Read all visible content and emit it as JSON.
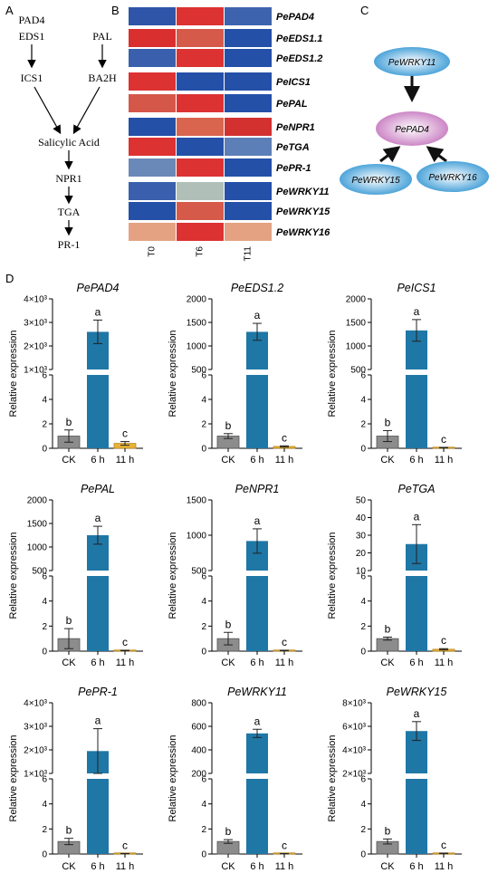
{
  "panels": {
    "A": "A",
    "B": "B",
    "C": "C",
    "D": "D"
  },
  "pathway": {
    "pad4": "PAD4",
    "eds1": "EDS1",
    "pal": "PAL",
    "ics1": "ICS1",
    "ba2h": "BA2H",
    "sa": "Salicylic Acid",
    "npr1": "NPR1",
    "tga": "TGA",
    "pr1": "PR-1"
  },
  "heatmap": {
    "columns": [
      "T0",
      "T6",
      "T11"
    ],
    "rows": [
      {
        "gene": "PePAD4",
        "colors": [
          "#2e55a8",
          "#dc3232",
          "#3e63ae"
        ]
      },
      {
        "gene": "PeEDS1.1",
        "colors": [
          "#d9302f",
          "#d65a4a",
          "#2450a8"
        ]
      },
      {
        "gene": "PeEDS1.2",
        "colors": [
          "#3a60ad",
          "#dc3232",
          "#2450a8"
        ]
      },
      {
        "gene": "PeICS1",
        "colors": [
          "#dc3232",
          "#2450a8",
          "#2450a8"
        ]
      },
      {
        "gene": "PePAL",
        "colors": [
          "#d5574a",
          "#dc3232",
          "#2450a8"
        ]
      },
      {
        "gene": "PeNPR1",
        "colors": [
          "#2450a8",
          "#d9654f",
          "#d33030"
        ]
      },
      {
        "gene": "PeTGA",
        "colors": [
          "#dc3232",
          "#2450a8",
          "#5d7fb8"
        ]
      },
      {
        "gene": "PePR-1",
        "colors": [
          "#6b89b8",
          "#dc3232",
          "#2450a8"
        ]
      },
      {
        "gene": "PeWRKY11",
        "colors": [
          "#3a60ad",
          "#b0c0b8",
          "#2450a8"
        ]
      },
      {
        "gene": "PeWRKY15",
        "colors": [
          "#2450a8",
          "#d65a4a",
          "#2450a8"
        ]
      },
      {
        "gene": "PeWRKY16",
        "colors": [
          "#e4a283",
          "#dc3232",
          "#e4a283"
        ]
      }
    ]
  },
  "network": {
    "top": "PeWRKY11",
    "center": "PePAD4",
    "left": "PeWRKY15",
    "right": "PeWRKY16"
  },
  "colors": {
    "ck": "#8c8c8c",
    "h6": "#1f77a6",
    "h11": "#e8b23a"
  },
  "chart_data": [
    {
      "type": "bar",
      "title": "PePAD4",
      "ylabel": "Relative expression",
      "categories": [
        "CK",
        "6 h",
        "11 h"
      ],
      "values": [
        1,
        2600,
        0.4
      ],
      "errors": [
        0.5,
        500,
        0.15
      ],
      "letters": [
        "b",
        "a",
        "c"
      ],
      "lower_ticks": [
        "0",
        "2",
        "4",
        "6"
      ],
      "upper_ticks": [
        "1×10³",
        "2×10³",
        "3×10³",
        "4×10³"
      ],
      "upper_range": [
        1000,
        4000
      ]
    },
    {
      "type": "bar",
      "title": "PeEDS1.2",
      "ylabel": "Relative expression",
      "categories": [
        "CK",
        "6 h",
        "11 h"
      ],
      "values": [
        1,
        1300,
        0.15
      ],
      "errors": [
        0.2,
        180,
        0.05
      ],
      "letters": [
        "b",
        "a",
        "c"
      ],
      "lower_ticks": [
        "0",
        "2",
        "4",
        "6"
      ],
      "upper_ticks": [
        "500",
        "1000",
        "1500",
        "2000"
      ],
      "upper_range": [
        500,
        2000
      ]
    },
    {
      "type": "bar",
      "title": "PeICS1",
      "ylabel": "Relative expression",
      "categories": [
        "CK",
        "6 h",
        "11 h"
      ],
      "values": [
        1,
        1330,
        0.05
      ],
      "errors": [
        0.45,
        230,
        0.02
      ],
      "letters": [
        "b",
        "a",
        "c"
      ],
      "lower_ticks": [
        "0",
        "2",
        "4",
        "6"
      ],
      "upper_ticks": [
        "500",
        "1000",
        "1500",
        "2000"
      ],
      "upper_range": [
        500,
        2000
      ]
    },
    {
      "type": "bar",
      "title": "PePAL",
      "ylabel": "Relative expression",
      "categories": [
        "CK",
        "6 h",
        "11 h"
      ],
      "values": [
        1,
        1250,
        0.05
      ],
      "errors": [
        0.8,
        190,
        0.02
      ],
      "letters": [
        "b",
        "a",
        "c"
      ],
      "lower_ticks": [
        "0",
        "2",
        "4",
        "6"
      ],
      "upper_ticks": [
        "500",
        "1000",
        "1500",
        "2000"
      ],
      "upper_range": [
        500,
        2000
      ]
    },
    {
      "type": "bar",
      "title": "PeNPR1",
      "ylabel": "Relative expression",
      "categories": [
        "CK",
        "6 h",
        "11 h"
      ],
      "values": [
        1,
        860,
        0.05
      ],
      "errors": [
        0.5,
        190,
        0.02
      ],
      "letters": [
        "b",
        "a",
        "c"
      ],
      "lower_ticks": [
        "0",
        "2",
        "4",
        "6"
      ],
      "upper_ticks": [
        "500",
        "1000",
        "1500"
      ],
      "upper_range": [
        400,
        1500
      ]
    },
    {
      "type": "bar",
      "title": "PeTGA",
      "ylabel": "Relative expression",
      "categories": [
        "CK",
        "6 h",
        "11 h"
      ],
      "values": [
        1,
        25,
        0.15
      ],
      "errors": [
        0.12,
        11,
        0.05
      ],
      "letters": [
        "b",
        "a",
        "c"
      ],
      "lower_ticks": [
        "0",
        "2",
        "4",
        "6"
      ],
      "upper_ticks": [
        "10",
        "20",
        "30",
        "40",
        "50"
      ],
      "upper_range": [
        10,
        50
      ]
    },
    {
      "type": "bar",
      "title": "PePR-1",
      "ylabel": "Relative expression",
      "categories": [
        "CK",
        "6 h",
        "11 h"
      ],
      "values": [
        1,
        1950,
        0.03
      ],
      "errors": [
        0.25,
        950,
        0.01
      ],
      "letters": [
        "b",
        "a",
        "c"
      ],
      "lower_ticks": [
        "0",
        "2",
        "4",
        "6"
      ],
      "upper_ticks": [
        "1×10³",
        "2×10³",
        "3×10³",
        "4×10³"
      ],
      "upper_range": [
        1000,
        4000
      ]
    },
    {
      "type": "bar",
      "title": "PeWRKY11",
      "ylabel": "Relative expression",
      "categories": [
        "CK",
        "6 h",
        "11 h"
      ],
      "values": [
        1,
        540,
        0.03
      ],
      "errors": [
        0.15,
        35,
        0.01
      ],
      "letters": [
        "b",
        "a",
        "c"
      ],
      "lower_ticks": [
        "0",
        "2",
        "4",
        "6"
      ],
      "upper_ticks": [
        "200",
        "400",
        "600",
        "800"
      ],
      "upper_range": [
        200,
        800
      ]
    },
    {
      "type": "bar",
      "title": "PeWRKY15",
      "ylabel": "Relative expression",
      "categories": [
        "CK",
        "6 h",
        "11 h"
      ],
      "values": [
        1,
        5600,
        0.05
      ],
      "errors": [
        0.2,
        800,
        0.02
      ],
      "letters": [
        "b",
        "a",
        "c"
      ],
      "lower_ticks": [
        "0",
        "2",
        "4",
        "6"
      ],
      "upper_ticks": [
        "2×10³",
        "4×10³",
        "6×10³",
        "8×10³"
      ],
      "upper_range": [
        2000,
        8000
      ]
    }
  ]
}
